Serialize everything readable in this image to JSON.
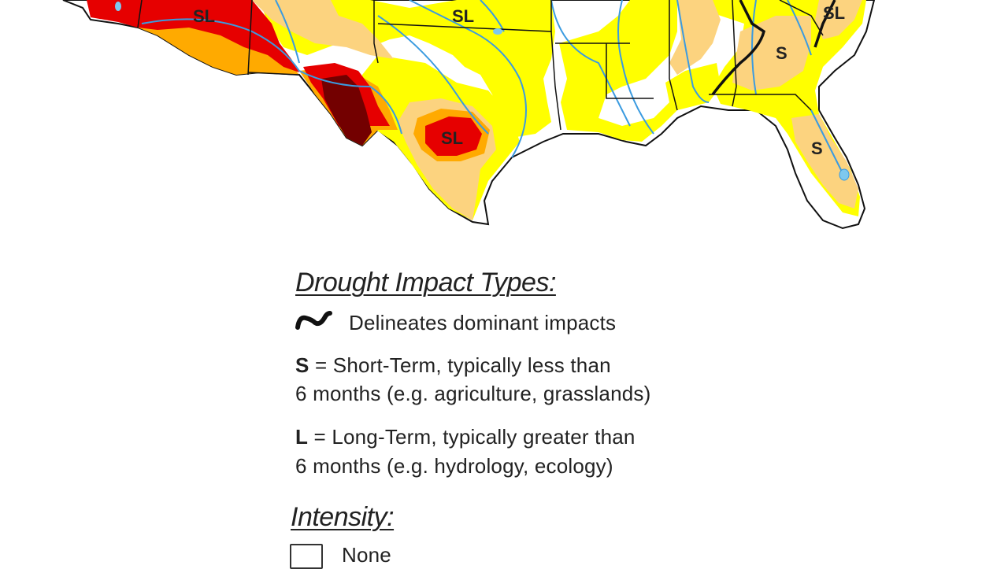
{
  "map": {
    "labels": [
      "SL",
      "SL",
      "SL",
      "S",
      "S",
      "SL"
    ],
    "colors": {
      "d0_abnormally_dry": "#ffff00",
      "d1_moderate": "#fcd37f",
      "d2_severe": "#ffaa00",
      "d3_extreme": "#e60000",
      "d4_exceptional": "#730000",
      "rivers": "#3b9be0",
      "borders": "#111111"
    }
  },
  "legend": {
    "impact_heading": "Drought Impact Types:",
    "delineates_text": "Delineates dominant impacts",
    "short_term": {
      "letter": "S",
      "line1": " = Short-Term, typically less than",
      "line2": "6 months (e.g. agriculture, grasslands)"
    },
    "long_term": {
      "letter": "L",
      "line1": " = Long-Term, typically greater than",
      "line2": "6 months (e.g. hydrology, ecology)"
    },
    "intensity_heading": "Intensity:",
    "intensity_items": [
      {
        "label": "None",
        "color": "#ffffff"
      }
    ]
  }
}
